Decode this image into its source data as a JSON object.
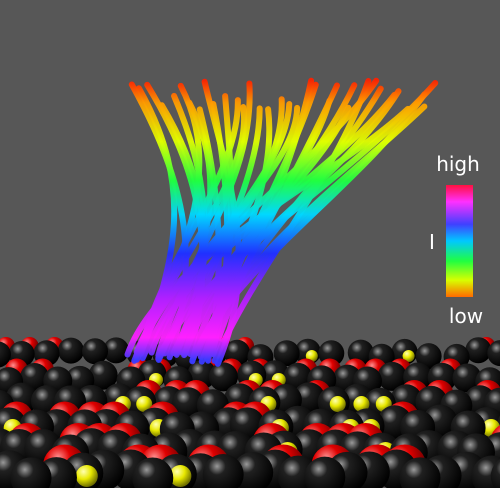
{
  "legend": {
    "high": "high",
    "quantity": "I",
    "low": "low"
  }
}
